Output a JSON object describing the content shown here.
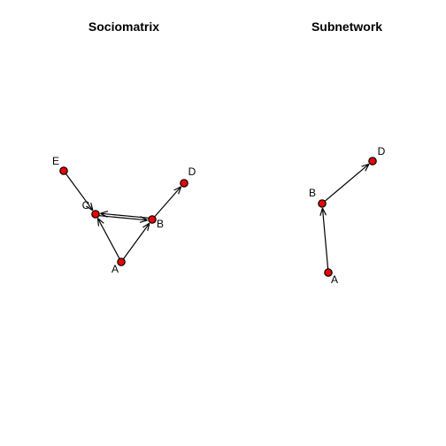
{
  "panels": [
    {
      "title": "Sociomatrix",
      "nodes": [
        {
          "id": "E",
          "label": "E"
        },
        {
          "id": "C",
          "label": "C"
        },
        {
          "id": "B",
          "label": "B"
        },
        {
          "id": "D",
          "label": "D"
        },
        {
          "id": "A",
          "label": "A"
        }
      ],
      "edges": [
        {
          "from": "E",
          "to": "C"
        },
        {
          "from": "C",
          "to": "B"
        },
        {
          "from": "B",
          "to": "C"
        },
        {
          "from": "B",
          "to": "D"
        },
        {
          "from": "A",
          "to": "C"
        },
        {
          "from": "A",
          "to": "B"
        }
      ]
    },
    {
      "title": "Subnetwork",
      "nodes": [
        {
          "id": "B",
          "label": "B"
        },
        {
          "id": "D",
          "label": "D"
        },
        {
          "id": "A",
          "label": "A"
        }
      ],
      "edges": [
        {
          "from": "A",
          "to": "B"
        },
        {
          "from": "B",
          "to": "D"
        }
      ]
    }
  ],
  "colors": {
    "node_fill": "#ee0000",
    "node_stroke": "#000000",
    "edge": "#000000"
  }
}
